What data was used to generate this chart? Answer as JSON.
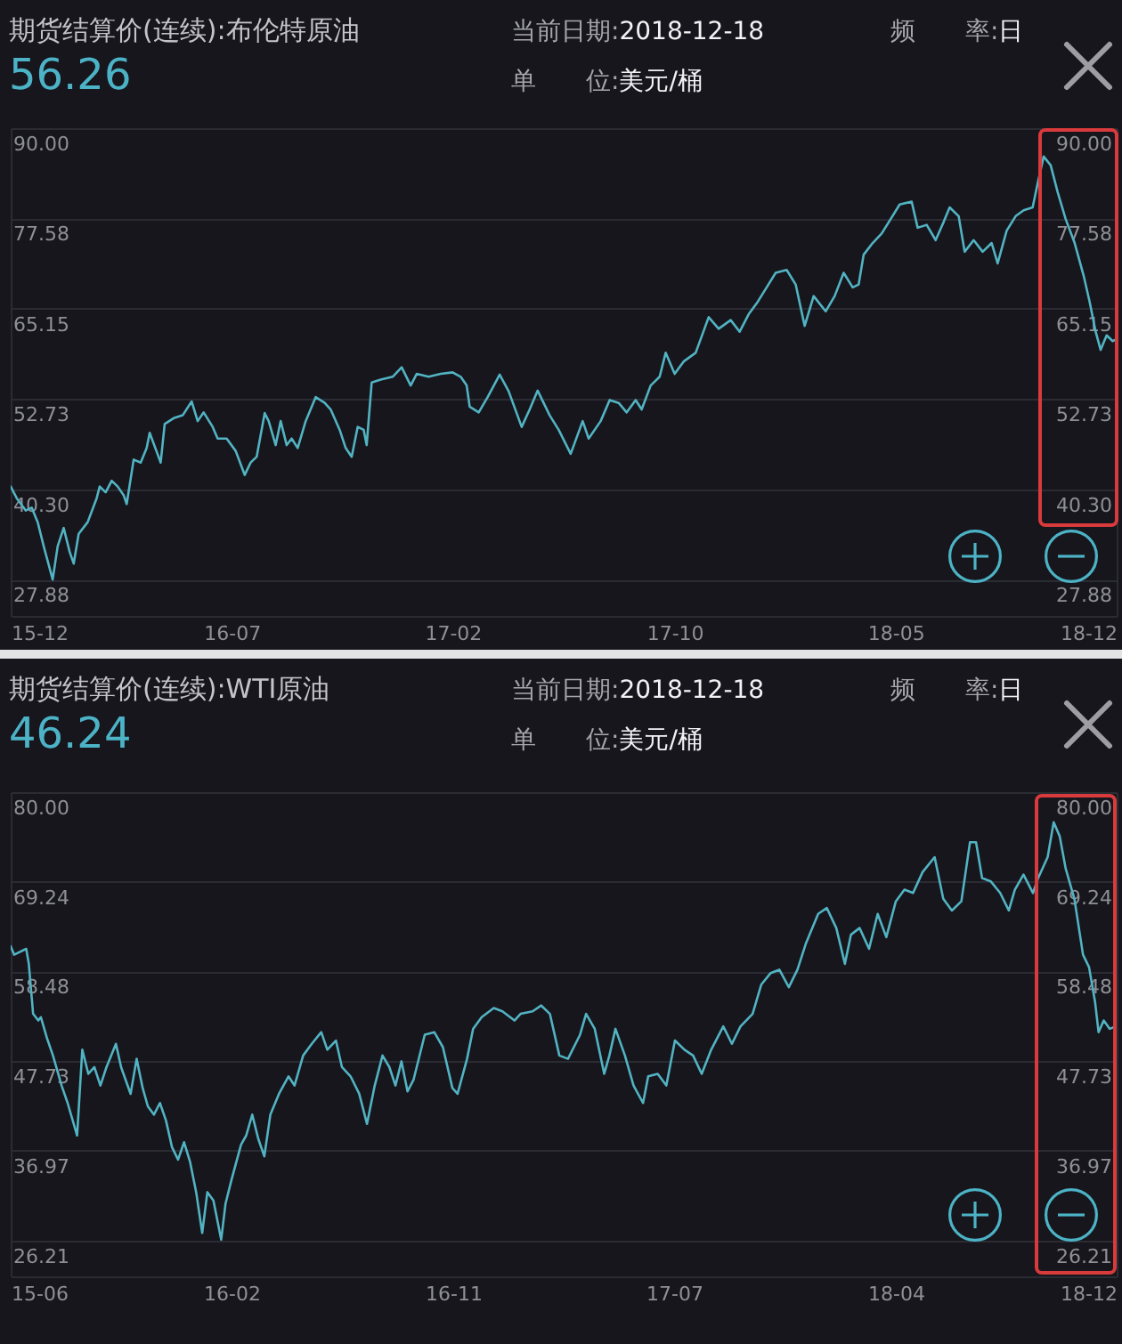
{
  "chart_data": [
    {
      "type": "line",
      "title": "期货结算价(连续):布伦特原油",
      "subtitle": "56.26",
      "annotations": [
        "当前日期:2018-12-18",
        "频　　率:日",
        "单　　位:美元/桶"
      ],
      "x": [
        "2015-12-08",
        "2015-12-14",
        "2015-12-23",
        "2015-12-29",
        "2016-01-04",
        "2016-01-10",
        "2016-01-19",
        "2016-01-24",
        "2016-01-30",
        "2016-02-05",
        "2016-02-09",
        "2016-02-14",
        "2016-02-23",
        "2016-03-03",
        "2016-03-06",
        "2016-03-12",
        "2016-03-18",
        "2016-03-24",
        "2016-03-30",
        "2016-04-02",
        "2016-04-09",
        "2016-04-16",
        "2016-04-22",
        "2016-04-25",
        "2016-05-06",
        "2016-05-10",
        "2016-05-19",
        "2016-05-28",
        "2016-06-06",
        "2016-06-12",
        "2016-06-18",
        "2016-06-27",
        "2016-07-02",
        "2016-07-11",
        "2016-07-20",
        "2016-07-29",
        "2016-08-04",
        "2016-08-10",
        "2016-08-18",
        "2016-08-22",
        "2016-08-29",
        "2016-09-03",
        "2016-09-09",
        "2016-09-14",
        "2016-09-20",
        "2016-09-28",
        "2016-10-08",
        "2016-10-17",
        "2016-10-23",
        "2016-11-01",
        "2016-11-07",
        "2016-11-13",
        "2016-11-19",
        "2016-11-25",
        "2016-11-28",
        "2016-12-03",
        "2016-12-12",
        "2016-12-24",
        "2017-01-02",
        "2017-01-11",
        "2017-01-17",
        "2017-01-29",
        "2017-02-10",
        "2017-02-22",
        "2017-03-02",
        "2017-03-08",
        "2017-03-11",
        "2017-03-20",
        "2017-03-29",
        "2017-04-10",
        "2017-04-19",
        "2017-05-02",
        "2017-05-10",
        "2017-05-18",
        "2017-05-30",
        "2017-06-08",
        "2017-06-20",
        "2017-07-02",
        "2017-07-08",
        "2017-07-20",
        "2017-07-29",
        "2017-08-07",
        "2017-08-15",
        "2017-08-24",
        "2017-08-30",
        "2017-09-08",
        "2017-09-17",
        "2017-09-23",
        "2017-10-02",
        "2017-10-11",
        "2017-10-23",
        "2017-11-05",
        "2017-11-15",
        "2017-11-27",
        "2017-12-06",
        "2017-12-15",
        "2017-12-24",
        "2018-01-02",
        "2018-01-11",
        "2018-01-22",
        "2018-01-31",
        "2018-02-09",
        "2018-02-18",
        "2018-03-02",
        "2018-03-11",
        "2018-03-20",
        "2018-03-29",
        "2018-04-04",
        "2018-04-09",
        "2018-04-18",
        "2018-04-27",
        "2018-05-06",
        "2018-05-15",
        "2018-05-27",
        "2018-06-02",
        "2018-06-11",
        "2018-06-20",
        "2018-06-28",
        "2018-07-04",
        "2018-07-13",
        "2018-07-19",
        "2018-07-28",
        "2018-08-06",
        "2018-08-15",
        "2018-08-21",
        "2018-08-30",
        "2018-09-08",
        "2018-09-16",
        "2018-09-25",
        "2018-09-30",
        "2018-10-06",
        "2018-10-13",
        "2018-10-20",
        "2018-10-28",
        "2018-11-06",
        "2018-11-15",
        "2018-11-21",
        "2018-11-27",
        "2018-12-02",
        "2018-12-08",
        "2018-12-14",
        "2018-12-18"
      ],
      "series": [
        {
          "color": "#52b3c2",
          "values": [
            40.7,
            39.1,
            37.4,
            37.8,
            35.8,
            32.5,
            27.9,
            32.5,
            35.0,
            31.7,
            30.1,
            34.2,
            35.8,
            39.1,
            40.7,
            39.9,
            41.5,
            40.7,
            39.5,
            38.3,
            44.4,
            44.0,
            46.0,
            48.1,
            44.0,
            49.3,
            50.1,
            50.5,
            52.4,
            49.7,
            50.9,
            48.9,
            47.3,
            47.3,
            45.6,
            42.3,
            44.0,
            44.8,
            50.8,
            49.7,
            46.4,
            49.7,
            46.4,
            47.3,
            46.0,
            49.7,
            53.0,
            52.2,
            51.3,
            48.5,
            46.0,
            44.8,
            48.9,
            48.5,
            46.4,
            55.0,
            55.4,
            55.8,
            57.1,
            54.6,
            56.2,
            55.8,
            56.2,
            56.4,
            55.8,
            54.6,
            51.7,
            50.9,
            53.0,
            56.1,
            53.8,
            48.9,
            51.3,
            53.9,
            50.5,
            48.5,
            45.2,
            49.7,
            47.3,
            49.7,
            52.6,
            52.2,
            50.9,
            52.6,
            51.3,
            54.6,
            55.8,
            59.1,
            56.2,
            57.9,
            59.1,
            64.0,
            62.4,
            63.6,
            62.0,
            64.4,
            66.1,
            68.1,
            70.1,
            70.5,
            68.5,
            62.8,
            66.9,
            64.8,
            66.9,
            70.1,
            68.1,
            68.5,
            72.6,
            74.2,
            75.5,
            77.5,
            79.5,
            79.9,
            76.3,
            76.7,
            74.6,
            77.1,
            79.1,
            77.9,
            73.0,
            74.6,
            73.0,
            74.2,
            71.4,
            75.9,
            77.9,
            78.7,
            79.1,
            82.4,
            86.1,
            84.9,
            81.2,
            77.5,
            74.2,
            69.7,
            66.1,
            62.0,
            59.5,
            61.5,
            60.7,
            61.0
          ]
        }
      ],
      "xlim": [
        "2015-12-08",
        "2018-12-18"
      ],
      "xticks": [
        {
          "value": "2015-12-08",
          "label": "15-12"
        },
        {
          "value": "2016-07-16",
          "label": "16-07"
        },
        {
          "value": "2017-02-22",
          "label": "17-02"
        },
        {
          "value": "2017-10-02",
          "label": "17-10"
        },
        {
          "value": "2018-05-11",
          "label": "18-05"
        },
        {
          "value": "2018-12-18",
          "label": "18-12"
        }
      ],
      "ylim": [
        22.9,
        90
      ],
      "yticks": [
        {
          "value": 90,
          "label": "90.00"
        },
        77.58,
        65.15,
        52.73,
        {
          "value": 40.3,
          "label": "40.30"
        },
        27.88
      ],
      "y2lim": [
        22.9,
        90
      ],
      "y2ticks": [
        {
          "value": 90,
          "label": "90.00"
        },
        77.58,
        65.15,
        52.73,
        {
          "value": 40.3,
          "label": "40.30"
        },
        27.88
      ],
      "grid": "y"
    },
    {
      "type": "line",
      "title": "期货结算价(连续):WTI原油",
      "subtitle": "46.24",
      "annotations": [
        "当前日期:2018-12-18",
        "频　　率:日",
        "单　　位:美元/桶"
      ],
      "x": [
        "2015-06-15",
        "2015-06-19",
        "2015-07-03",
        "2015-07-06",
        "2015-07-11",
        "2015-07-17",
        "2015-07-20",
        "2015-07-27",
        "2015-08-03",
        "2015-08-13",
        "2015-08-20",
        "2015-08-31",
        "2015-09-06",
        "2015-09-13",
        "2015-09-20",
        "2015-09-27",
        "2015-10-04",
        "2015-10-15",
        "2015-10-21",
        "2015-11-01",
        "2015-11-08",
        "2015-11-15",
        "2015-11-21",
        "2015-11-28",
        "2015-12-05",
        "2015-12-12",
        "2015-12-19",
        "2015-12-26",
        "2016-01-02",
        "2016-01-09",
        "2016-01-16",
        "2016-01-23",
        "2016-01-29",
        "2016-02-05",
        "2016-02-14",
        "2016-02-19",
        "2016-02-26",
        "2016-03-08",
        "2016-03-14",
        "2016-03-21",
        "2016-03-28",
        "2016-04-04",
        "2016-04-11",
        "2016-04-21",
        "2016-05-02",
        "2016-05-09",
        "2016-05-19",
        "2016-05-29",
        "2016-06-09",
        "2016-06-16",
        "2016-06-26",
        "2016-07-03",
        "2016-07-13",
        "2016-07-23",
        "2016-08-01",
        "2016-08-10",
        "2016-08-19",
        "2016-08-27",
        "2016-09-03",
        "2016-09-10",
        "2016-09-17",
        "2016-09-24",
        "2016-10-07",
        "2016-10-18",
        "2016-10-28",
        "2016-11-08",
        "2016-11-14",
        "2016-11-25",
        "2016-12-02",
        "2016-12-12",
        "2016-12-26",
        "2017-01-05",
        "2017-01-19",
        "2017-01-26",
        "2017-02-09",
        "2017-02-19",
        "2017-03-01",
        "2017-03-12",
        "2017-03-22",
        "2017-04-05",
        "2017-04-12",
        "2017-04-22",
        "2017-05-03",
        "2017-05-09",
        "2017-05-16",
        "2017-05-27",
        "2017-06-06",
        "2017-06-17",
        "2017-06-23",
        "2017-07-04",
        "2017-07-14",
        "2017-07-24",
        "2017-08-04",
        "2017-08-14",
        "2017-08-24",
        "2017-09-04",
        "2017-09-18",
        "2017-09-28",
        "2017-10-08",
        "2017-10-22",
        "2017-11-01",
        "2017-11-12",
        "2017-11-22",
        "2017-12-03",
        "2017-12-13",
        "2017-12-23",
        "2018-01-06",
        "2018-01-16",
        "2018-01-27",
        "2018-02-06",
        "2018-02-13",
        "2018-02-23",
        "2018-03-06",
        "2018-03-16",
        "2018-03-26",
        "2018-04-06",
        "2018-04-16",
        "2018-04-26",
        "2018-05-07",
        "2018-05-21",
        "2018-05-31",
        "2018-06-10",
        "2018-06-21",
        "2018-07-01",
        "2018-07-08",
        "2018-07-15",
        "2018-07-25",
        "2018-08-05",
        "2018-08-15",
        "2018-08-22",
        "2018-09-01",
        "2018-09-12",
        "2018-09-18",
        "2018-09-29",
        "2018-10-06",
        "2018-10-13",
        "2018-10-20",
        "2018-10-30",
        "2018-11-09",
        "2018-11-16",
        "2018-11-23",
        "2018-11-27",
        "2018-12-03",
        "2018-12-10",
        "2018-12-17",
        "2018-12-18"
      ],
      "series": [
        {
          "color": "#52b3c2",
          "values": [
            61.5,
            60.5,
            61.2,
            59.4,
            53.4,
            52.6,
            53.0,
            50.5,
            48.4,
            44.8,
            42.7,
            38.8,
            49.1,
            46.2,
            47.0,
            44.8,
            47.0,
            49.8,
            47.0,
            43.8,
            48.0,
            44.5,
            42.3,
            41.3,
            42.7,
            40.6,
            37.4,
            35.9,
            38.0,
            35.6,
            32.0,
            27.1,
            32.0,
            31.0,
            26.3,
            30.6,
            33.5,
            37.7,
            38.8,
            41.3,
            38.4,
            36.3,
            41.3,
            43.8,
            45.9,
            44.8,
            48.4,
            49.8,
            51.2,
            49.1,
            50.2,
            47.0,
            45.9,
            43.8,
            40.2,
            44.8,
            48.4,
            47.0,
            44.8,
            47.7,
            44.1,
            45.5,
            50.9,
            51.2,
            49.4,
            44.5,
            43.8,
            48.0,
            51.6,
            53.0,
            54.1,
            53.7,
            52.6,
            53.4,
            53.7,
            54.4,
            53.4,
            48.4,
            48.0,
            50.9,
            53.4,
            51.6,
            46.2,
            48.4,
            51.6,
            48.4,
            44.8,
            42.7,
            45.9,
            46.2,
            44.8,
            50.2,
            49.1,
            48.4,
            46.2,
            49.1,
            51.9,
            49.8,
            51.9,
            53.4,
            56.9,
            58.3,
            58.7,
            56.6,
            58.7,
            61.9,
            65.4,
            66.1,
            63.7,
            59.4,
            62.9,
            63.7,
            61.2,
            65.4,
            62.6,
            66.9,
            68.3,
            67.9,
            70.4,
            72.2,
            67.2,
            65.8,
            66.9,
            74.0,
            74.0,
            69.7,
            69.3,
            67.9,
            65.8,
            68.3,
            70.1,
            67.9,
            69.7,
            72.2,
            76.4,
            74.7,
            70.8,
            67.2,
            60.5,
            59.0,
            54.8,
            51.2,
            52.6,
            51.6,
            51.9,
            51.5
          ]
        }
      ],
      "xlim": [
        "2015-06-15",
        "2018-12-18"
      ],
      "xticks": [
        {
          "value": "2015-06-15",
          "label": "15-06"
        },
        {
          "value": "2016-02-26",
          "label": "16-02"
        },
        {
          "value": "2016-11-09",
          "label": "16-11"
        },
        {
          "value": "2017-07-23",
          "label": "17-07"
        },
        {
          "value": "2018-04-06",
          "label": "18-04"
        },
        {
          "value": "2018-12-18",
          "label": "18-12"
        }
      ],
      "ylim": [
        21.9,
        80
      ],
      "yticks": [
        {
          "value": 80,
          "label": "80.00"
        },
        69.24,
        58.48,
        47.73,
        36.97,
        26.21
      ],
      "y2lim": [
        21.9,
        80
      ],
      "y2ticks": [
        {
          "value": 80,
          "label": "80.00"
        },
        69.24,
        58.48,
        47.73,
        36.97,
        26.21
      ],
      "grid": "y"
    }
  ]
}
